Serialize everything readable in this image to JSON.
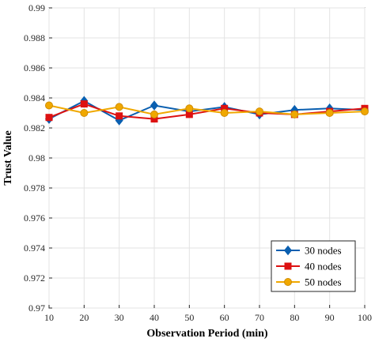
{
  "chart_data": {
    "type": "line",
    "xlabel": "Observation Period (min)",
    "ylabel": "Trust Value",
    "x": [
      10,
      20,
      30,
      40,
      50,
      60,
      70,
      80,
      90,
      100
    ],
    "xlim": [
      10,
      100
    ],
    "ylim": [
      0.97,
      0.99
    ],
    "xticks": [
      "10",
      "20",
      "30",
      "40",
      "50",
      "60",
      "70",
      "80",
      "90",
      "100"
    ],
    "yticks": [
      "0.97",
      "0.972",
      "0.974",
      "0.976",
      "0.978",
      "0.98",
      "0.982",
      "0.984",
      "0.986",
      "0.988",
      "0.99"
    ],
    "grid": true,
    "legend_position": "bottom-right",
    "series": [
      {
        "name": "30 nodes",
        "color": "#0a5fb0",
        "marker": "diamond",
        "values": [
          0.9826,
          0.9838,
          0.9825,
          0.9835,
          0.9831,
          0.9834,
          0.9829,
          0.9832,
          0.9833,
          0.9832
        ]
      },
      {
        "name": "40 nodes",
        "color": "#dd1111",
        "marker": "square",
        "values": [
          0.9827,
          0.9836,
          0.9828,
          0.9826,
          0.9829,
          0.9833,
          0.983,
          0.9829,
          0.9831,
          0.9833
        ]
      },
      {
        "name": "50 nodes",
        "color": "#f0a800",
        "marker": "circle",
        "values": [
          0.9835,
          0.983,
          0.9834,
          0.9829,
          0.9833,
          0.983,
          0.9831,
          0.9829,
          0.983,
          0.9831
        ]
      }
    ]
  }
}
